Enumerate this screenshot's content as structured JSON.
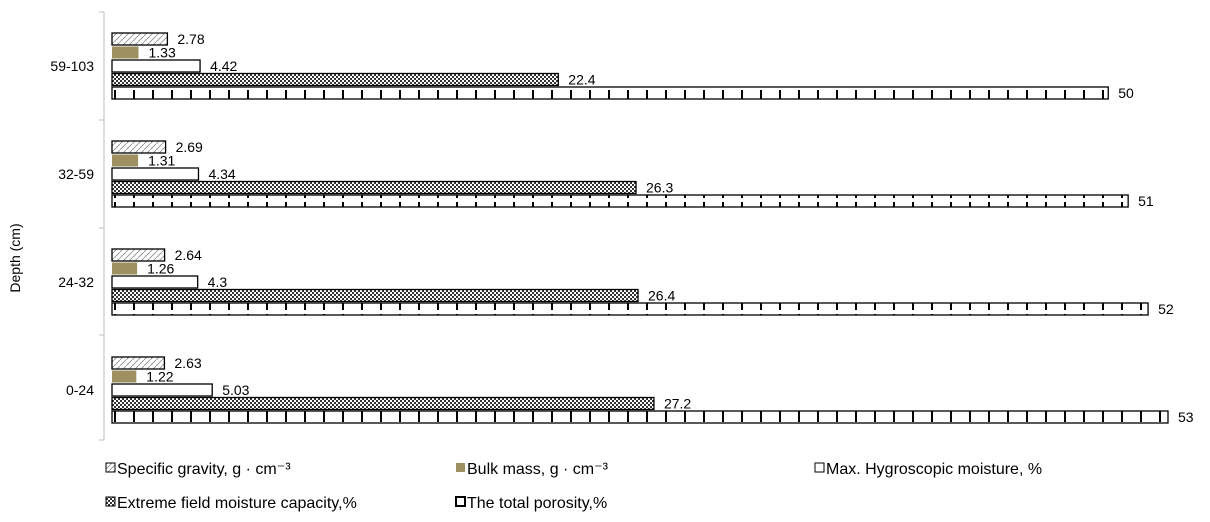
{
  "chart_data": {
    "type": "bar",
    "orientation": "horizontal",
    "ylabel": "Depth (cm)",
    "xlabel": "",
    "xlim": [
      0,
      53
    ],
    "grid": false,
    "legend_position": "bottom",
    "categories": [
      "0-24",
      "24-32",
      "32-59",
      "59-103"
    ],
    "series": [
      {
        "name": "Specific gravity, g · cm⁻³",
        "values": [
          2.63,
          2.64,
          2.69,
          2.78
        ],
        "fill": "#ffffff",
        "pattern": "hatch"
      },
      {
        "name": "Bulk mass, g · cm⁻³",
        "values": [
          1.22,
          1.26,
          1.31,
          1.33
        ],
        "fill": "#9e9060",
        "pattern": "solid"
      },
      {
        "name": "Max. Hygroscopic moisture, %",
        "values": [
          5.03,
          4.3,
          4.34,
          4.42
        ],
        "fill": "#ffffff",
        "pattern": "none"
      },
      {
        "name": "Extreme field moisture capacity,%",
        "values": [
          27.2,
          26.4,
          26.3,
          22.4
        ],
        "fill": "#b0b0b0",
        "pattern": "checker"
      },
      {
        "name": "The total porosity,%",
        "values": [
          53,
          52,
          51,
          50
        ],
        "fill": "#ffffff",
        "pattern": "ticks"
      }
    ],
    "value_labels": [
      [
        "2.63",
        "2.64",
        "2.69",
        "2.78"
      ],
      [
        "1.22",
        "1.26",
        "1.31",
        "1.33"
      ],
      [
        "5.03",
        "4.3",
        "4.34",
        "4.42"
      ],
      [
        "27.2",
        "26.4",
        "26.3",
        "22.4"
      ],
      [
        "53",
        "52",
        "51",
        "50"
      ]
    ]
  }
}
